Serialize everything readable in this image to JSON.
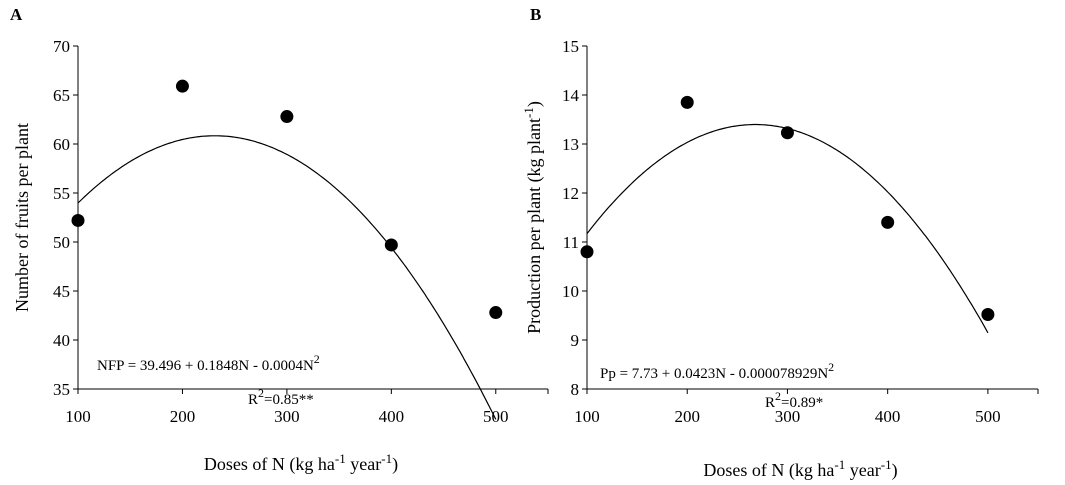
{
  "chart_data": [
    {
      "type": "scatter",
      "panel_label": "A",
      "x": [
        100,
        200,
        300,
        400,
        500
      ],
      "y": [
        52.2,
        65.9,
        62.8,
        49.7,
        42.8
      ],
      "fit": {
        "type": "quadratic",
        "a": 39.496,
        "b": 0.1848,
        "c": -0.0004
      },
      "xlim": [
        100,
        550
      ],
      "ylim": [
        35,
        70
      ],
      "xticks": [
        100,
        200,
        300,
        400,
        500
      ],
      "yticks": [
        35,
        40,
        45,
        50,
        55,
        60,
        65,
        70
      ],
      "xlabel": "Doses of N (kg ha-1 year-1)",
      "ylabel": "Number of fruits per plant",
      "equation": "NFP = 39.496 + 0.1848N - 0.0004N2",
      "r2": "R2=0.85**"
    },
    {
      "type": "scatter",
      "panel_label": "B",
      "x": [
        100,
        200,
        300,
        400,
        500
      ],
      "y": [
        10.8,
        13.85,
        13.23,
        11.4,
        9.52
      ],
      "fit": {
        "type": "quadratic",
        "a": 7.73,
        "b": 0.0423,
        "c": -7.8929e-05
      },
      "xlim": [
        100,
        550
      ],
      "ylim": [
        8,
        15
      ],
      "xticks": [
        100,
        200,
        300,
        400,
        500
      ],
      "yticks": [
        8,
        9,
        10,
        11,
        12,
        13,
        14,
        15
      ],
      "xlabel": "Doses of N (kg ha-1 year-1)",
      "ylabel": "Production per plant  (kg plant-1)",
      "equation": "Pp = 7.73 + 0.0423N - 0.000078929N2",
      "r2": "R2=0.89*"
    }
  ]
}
